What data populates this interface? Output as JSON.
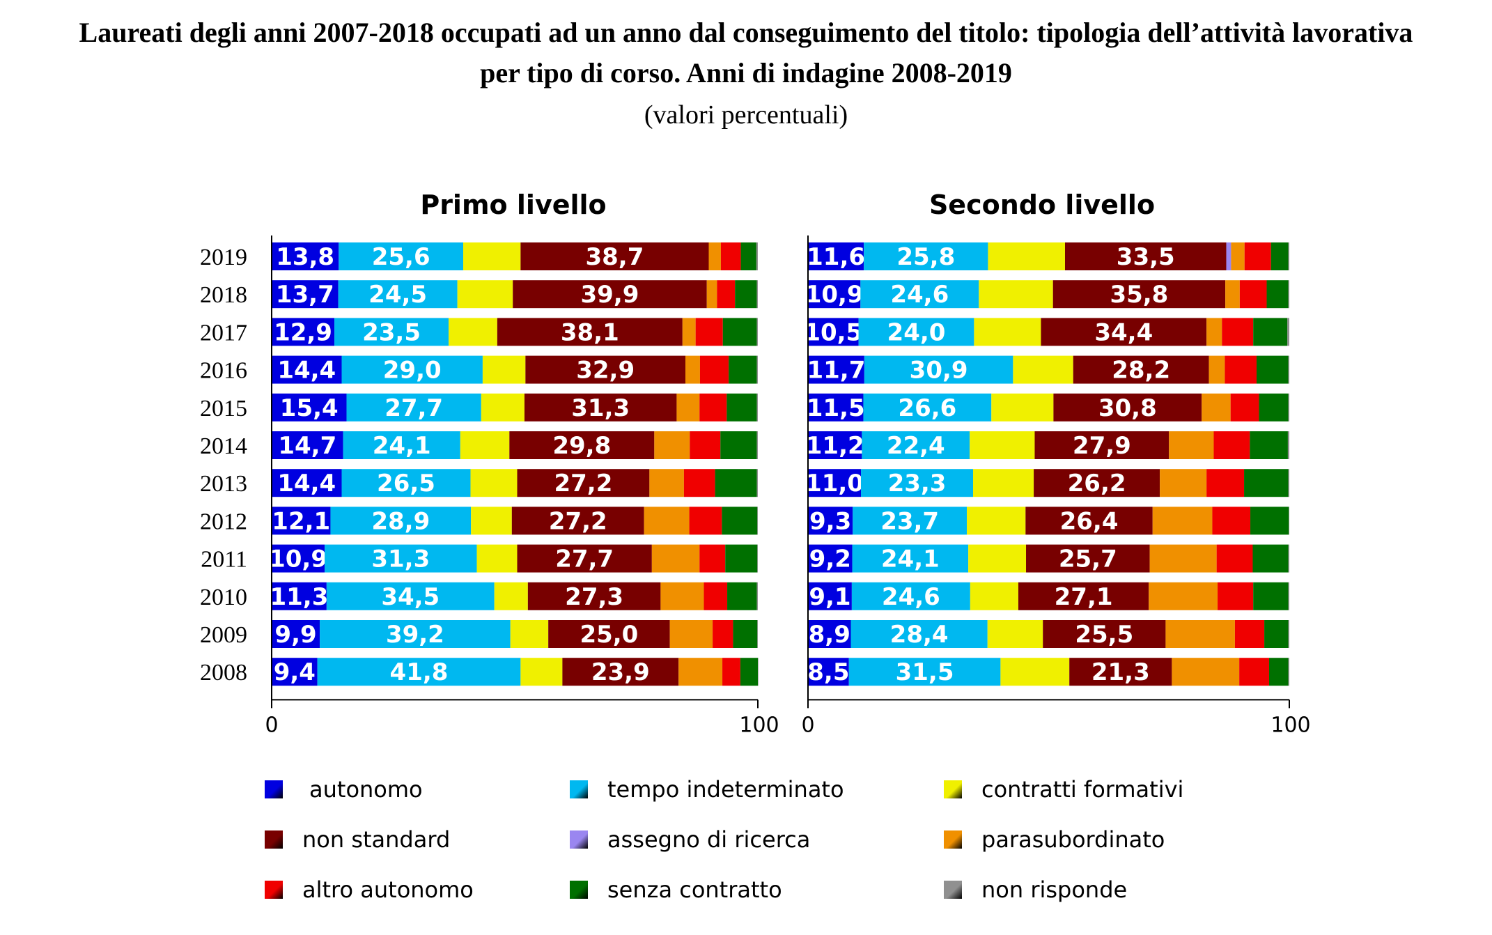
{
  "title_line1": "Laureati degli anni 2007-2018 occupati ad un anno dal conseguimento del titolo: tipologia dell’attività lavorativa",
  "title_line2": "per tipo di corso. Anni di indagine 2008-2019",
  "subtitle": "(valori percentuali)",
  "colors": {
    "autonomo": "#0000e0",
    "tempo_indeterminato": "#00b8f0",
    "contratti_formativi": "#f0f000",
    "non_standard": "#780000",
    "assegno_di_ricerca": "#9a86f0",
    "parasubordinato": "#f09000",
    "altro_autonomo": "#f00000",
    "senza_contratto": "#007000",
    "non_risponde": "#909090"
  },
  "legend": [
    {
      "key": "autonomo",
      "label": "autonomo"
    },
    {
      "key": "tempo_indeterminato",
      "label": "tempo indeterminato"
    },
    {
      "key": "contratti_formativi",
      "label": "contratti formativi"
    },
    {
      "key": "non_standard",
      "label": "non standard"
    },
    {
      "key": "assegno_di_ricerca",
      "label": "assegno di ricerca"
    },
    {
      "key": "parasubordinato",
      "label": "parasubordinato"
    },
    {
      "key": "altro_autonomo",
      "label": "altro autonomo"
    },
    {
      "key": "senza_contratto",
      "label": "senza contratto"
    },
    {
      "key": "non_risponde",
      "label": "non risponde"
    }
  ],
  "chart_data": [
    {
      "type": "bar",
      "orientation": "horizontal",
      "stacked": true,
      "title": "Primo livello",
      "categories": [
        "2019",
        "2018",
        "2017",
        "2016",
        "2015",
        "2014",
        "2013",
        "2012",
        "2011",
        "2010",
        "2009",
        "2008"
      ],
      "xlim": [
        0,
        100
      ],
      "xticks": [
        "0",
        "100"
      ],
      "labeled_series": [
        "autonomo",
        "tempo_indeterminato",
        "non_standard"
      ],
      "series": [
        {
          "name": "autonomo",
          "values": [
            13.8,
            13.7,
            12.9,
            14.4,
            15.4,
            14.7,
            14.4,
            12.1,
            10.9,
            11.3,
            9.9,
            9.4
          ]
        },
        {
          "name": "tempo indeterminato",
          "values": [
            25.6,
            24.5,
            23.5,
            29.0,
            27.7,
            24.1,
            26.5,
            28.9,
            31.3,
            34.5,
            39.2,
            41.8
          ]
        },
        {
          "name": "contratti formativi",
          "values": [
            11.8,
            11.4,
            10.0,
            8.8,
            8.9,
            10.1,
            9.6,
            8.4,
            8.3,
            6.9,
            7.8,
            8.6
          ]
        },
        {
          "name": "non standard",
          "values": [
            38.7,
            39.9,
            38.1,
            32.9,
            31.3,
            29.8,
            27.2,
            27.2,
            27.7,
            27.3,
            25.0,
            23.9
          ]
        },
        {
          "name": "assegno di ricerca",
          "values": [
            0,
            0,
            0,
            0,
            0,
            0,
            0,
            0,
            0,
            0,
            0,
            0
          ]
        },
        {
          "name": "parasubordinato",
          "values": [
            2.5,
            2.1,
            2.7,
            3.0,
            4.7,
            7.3,
            7.1,
            9.3,
            9.8,
            8.9,
            8.8,
            9.0
          ]
        },
        {
          "name": "altro autonomo",
          "values": [
            4.1,
            3.7,
            5.6,
            5.9,
            5.6,
            6.3,
            6.4,
            6.7,
            5.3,
            4.8,
            4.2,
            3.7
          ]
        },
        {
          "name": "senza contratto",
          "values": [
            3.2,
            4.5,
            7.0,
            5.8,
            6.2,
            7.5,
            8.6,
            7.3,
            6.6,
            6.1,
            5.0,
            3.6
          ]
        },
        {
          "name": "non risponde",
          "values": [
            0.3,
            0.2,
            0.2,
            0.2,
            0.2,
            0.2,
            0.2,
            0.1,
            0.1,
            0.2,
            0.1,
            0.1
          ]
        }
      ]
    },
    {
      "type": "bar",
      "orientation": "horizontal",
      "stacked": true,
      "title": "Secondo livello",
      "categories": [
        "2019",
        "2018",
        "2017",
        "2016",
        "2015",
        "2014",
        "2013",
        "2012",
        "2011",
        "2010",
        "2009",
        "2008"
      ],
      "xlim": [
        0,
        100
      ],
      "xticks": [
        "0",
        "100"
      ],
      "labeled_series": [
        "autonomo",
        "tempo_indeterminato",
        "non_standard"
      ],
      "series": [
        {
          "name": "autonomo",
          "values": [
            11.6,
            10.9,
            10.5,
            11.7,
            11.5,
            11.2,
            11.0,
            9.3,
            9.2,
            9.1,
            8.9,
            8.5
          ]
        },
        {
          "name": "tempo indeterminato",
          "values": [
            25.8,
            24.6,
            24.0,
            30.9,
            26.6,
            22.4,
            23.3,
            23.7,
            24.1,
            24.6,
            28.4,
            31.5
          ]
        },
        {
          "name": "contratti formativi",
          "values": [
            16.0,
            15.4,
            13.9,
            12.5,
            12.9,
            13.5,
            12.6,
            12.2,
            12.0,
            10.0,
            11.5,
            14.3
          ]
        },
        {
          "name": "non standard",
          "values": [
            33.5,
            35.8,
            34.4,
            28.2,
            30.8,
            27.9,
            26.2,
            26.4,
            25.7,
            27.1,
            25.5,
            21.3
          ]
        },
        {
          "name": "assegno di ricerca",
          "values": [
            1.0,
            0,
            0,
            0,
            0,
            0,
            0,
            0,
            0,
            0,
            0,
            0
          ]
        },
        {
          "name": "parasubordinato",
          "values": [
            2.8,
            3.0,
            3.2,
            3.3,
            6.0,
            9.3,
            9.7,
            12.4,
            13.9,
            14.3,
            14.4,
            14.0
          ]
        },
        {
          "name": "altro autonomo",
          "values": [
            5.5,
            5.6,
            6.5,
            6.6,
            5.9,
            7.5,
            7.8,
            7.9,
            7.5,
            7.4,
            6.1,
            6.2
          ]
        },
        {
          "name": "senza contratto",
          "values": [
            3.6,
            4.5,
            7.1,
            6.6,
            6.1,
            7.9,
            9.2,
            8.0,
            7.4,
            7.3,
            5.0,
            4.0
          ]
        },
        {
          "name": "non risponde",
          "values": [
            0.2,
            0.2,
            0.4,
            0.2,
            0.2,
            0.3,
            0.2,
            0.1,
            0.2,
            0.2,
            0.2,
            0.2
          ]
        }
      ]
    }
  ]
}
